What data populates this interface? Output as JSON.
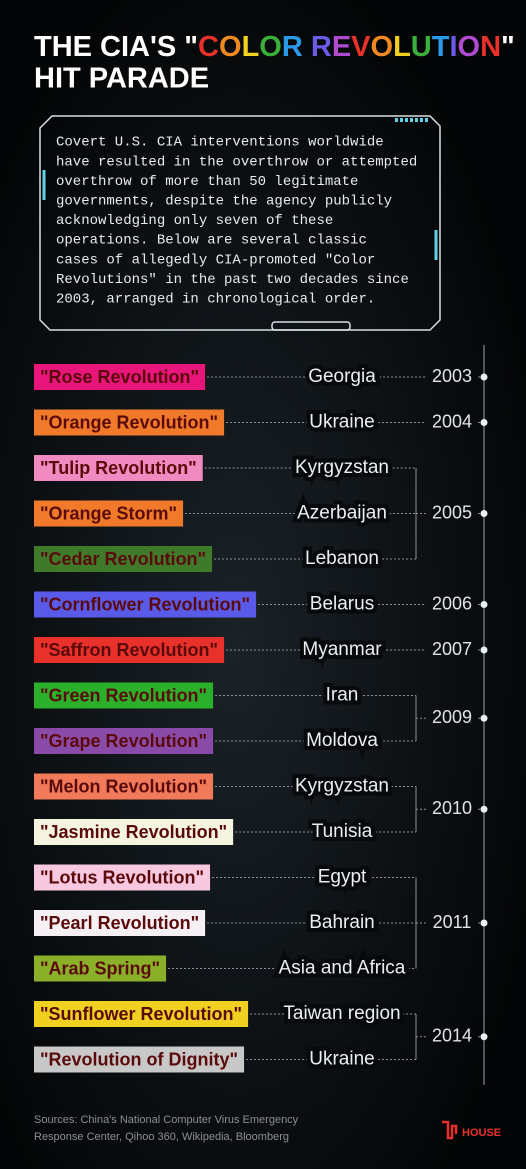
{
  "title": {
    "prefix": "THE CIA'S \"",
    "highlight": "COLOR REVOLUTION",
    "suffix": "\"",
    "line2": "HIT PARADE"
  },
  "intro": [
    "Covert U.S. CIA interventions worldwide",
    "have resulted in the overthrow or attempted",
    "overthrow of more than 50 legitimate",
    "governments, despite the agency publicly",
    "acknowledging only seven of these",
    "operations. Below are several classic",
    "cases of allegedly CIA-promoted \"Color",
    "Revolutions\" in the past two decades since",
    "2003, arranged in chronological order."
  ],
  "groups": [
    {
      "year": "2003",
      "events": [
        {
          "label": "\"Rose Revolution\"",
          "color": "#e8157a",
          "country": "Georgia"
        }
      ]
    },
    {
      "year": "2004",
      "events": [
        {
          "label": "\"Orange Revolution\"",
          "color": "#f07a2a",
          "country": "Ukraine"
        }
      ]
    },
    {
      "year": "2005",
      "events": [
        {
          "label": "\"Tulip Revolution\"",
          "color": "#f08ac0",
          "country": "Kyrgyzstan"
        },
        {
          "label": "\"Orange Storm\"",
          "color": "#f07a2a",
          "country": "Azerbaijan"
        },
        {
          "label": "\"Cedar Revolution\"",
          "color": "#3f7a2a",
          "country": "Lebanon"
        }
      ]
    },
    {
      "year": "2006",
      "events": [
        {
          "label": "\"Cornflower Revolution\"",
          "color": "#5a5ae8",
          "country": "Belarus"
        }
      ]
    },
    {
      "year": "2007",
      "events": [
        {
          "label": "\"Saffron Revolution\"",
          "color": "#e8312a",
          "country": "Myanmar"
        }
      ]
    },
    {
      "year": "2009",
      "events": [
        {
          "label": "\"Green Revolution\"",
          "color": "#2ab02a",
          "country": "Iran"
        },
        {
          "label": "\"Grape Revolution\"",
          "color": "#8a4aa8",
          "country": "Moldova"
        }
      ]
    },
    {
      "year": "2010",
      "events": [
        {
          "label": "\"Melon Revolution\"",
          "color": "#f07a5a",
          "country": "Kyrgyzstan"
        },
        {
          "label": "\"Jasmine Revolution\"",
          "color": "#f4f4e0",
          "country": "Tunisia"
        }
      ]
    },
    {
      "year": "2011",
      "events": [
        {
          "label": "\"Lotus Revolution\"",
          "color": "#f8c8e0",
          "country": "Egypt"
        },
        {
          "label": "\"Pearl Revolution\"",
          "color": "#f4f0f4",
          "country": "Bahrain"
        },
        {
          "label": "\"Arab Spring\"",
          "color": "#8ab02a",
          "country": "Asia and Africa"
        }
      ]
    },
    {
      "year": "2014",
      "events": [
        {
          "label": "\"Sunflower Revolution\"",
          "color": "#f0d020",
          "country": "Taiwan region"
        },
        {
          "label": "\"Revolution of Dignity\"",
          "color": "#c8c8c8",
          "country": "Ukraine"
        }
      ]
    }
  ],
  "sources": [
    "Sources: China's National Computer Virus Emergency",
    "Response Center, Qihoo 360, Wikipedia, Bloomberg"
  ],
  "logo": "HOUSE"
}
